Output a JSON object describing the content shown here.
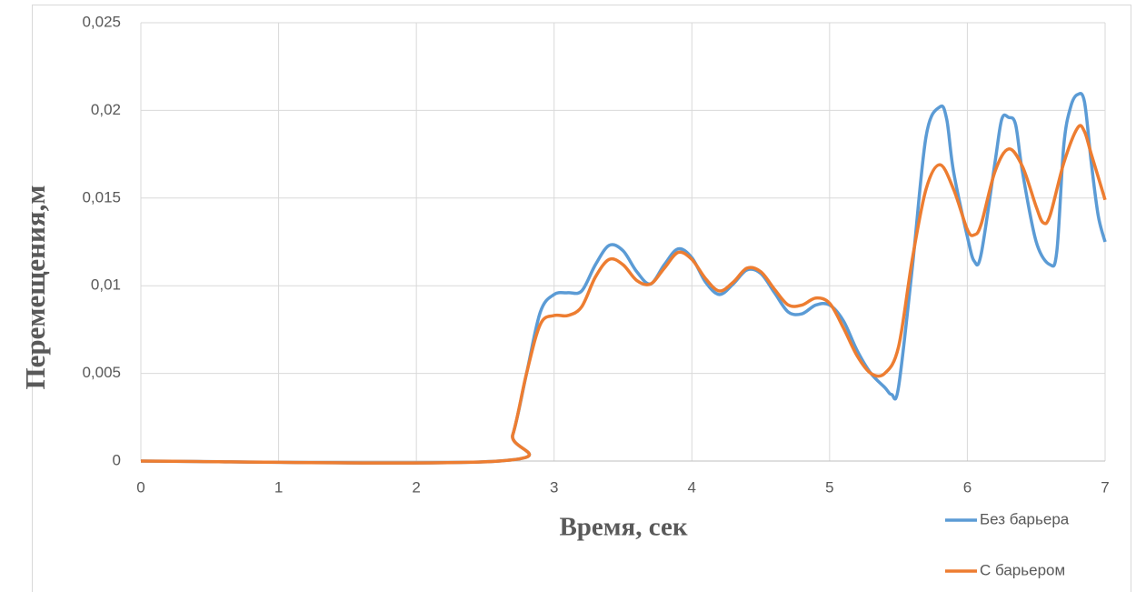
{
  "chart_data": {
    "type": "line",
    "x_label": "Время, сек",
    "y_label": "Перемещения,м",
    "xlim": [
      0,
      7
    ],
    "xticks": [
      0,
      1,
      2,
      3,
      4,
      5,
      6,
      7
    ],
    "ylim": [
      0,
      0.025
    ],
    "yticks": [
      0,
      {
        "value": 0.005,
        "label": "0,005"
      },
      {
        "value": 0.01,
        "label": "0,01"
      },
      {
        "value": 0.015,
        "label": "0,015"
      },
      {
        "value": 0.02,
        "label": "0,02"
      },
      {
        "value": 0.025,
        "label": "0,025"
      }
    ],
    "grid": true,
    "legend": "bottom-right",
    "series": [
      {
        "name": "Без барьера",
        "color": "#5b9bd5",
        "x": [
          0,
          2.6,
          2.7,
          2.8,
          2.9,
          3.0,
          3.1,
          3.2,
          3.3,
          3.4,
          3.5,
          3.6,
          3.7,
          3.8,
          3.9,
          4.0,
          4.1,
          4.2,
          4.3,
          4.4,
          4.5,
          4.6,
          4.7,
          4.8,
          4.9,
          5.0,
          5.1,
          5.2,
          5.3,
          5.4,
          5.45,
          5.5,
          5.6,
          5.7,
          5.8,
          5.85,
          5.9,
          6.0,
          6.05,
          6.1,
          6.2,
          6.25,
          6.3,
          6.35,
          6.4,
          6.5,
          6.6,
          6.65,
          6.7,
          6.75,
          6.8,
          6.85,
          6.9,
          6.95,
          7.0
        ],
        "values": [
          0,
          0,
          0.0015,
          0.005,
          0.0085,
          0.0095,
          0.0096,
          0.0097,
          0.0112,
          0.0123,
          0.012,
          0.0108,
          0.0101,
          0.0112,
          0.0121,
          0.0116,
          0.0102,
          0.0095,
          0.0101,
          0.0109,
          0.0107,
          0.0096,
          0.0085,
          0.0084,
          0.0089,
          0.0089,
          0.008,
          0.0063,
          0.005,
          0.0042,
          0.0038,
          0.0042,
          0.011,
          0.0185,
          0.0202,
          0.0195,
          0.0165,
          0.0128,
          0.0114,
          0.0118,
          0.017,
          0.0195,
          0.0196,
          0.0192,
          0.0165,
          0.0125,
          0.0112,
          0.012,
          0.018,
          0.0202,
          0.0209,
          0.0205,
          0.017,
          0.014,
          0.0125
        ]
      },
      {
        "name": "С барьером",
        "color": "#ed7d31",
        "x": [
          0,
          2.6,
          2.7,
          2.8,
          2.9,
          3.0,
          3.1,
          3.2,
          3.3,
          3.4,
          3.5,
          3.6,
          3.7,
          3.8,
          3.9,
          4.0,
          4.1,
          4.2,
          4.3,
          4.4,
          4.5,
          4.6,
          4.7,
          4.8,
          4.9,
          5.0,
          5.1,
          5.2,
          5.3,
          5.4,
          5.5,
          5.6,
          5.7,
          5.8,
          5.9,
          6.0,
          6.05,
          6.1,
          6.2,
          6.3,
          6.4,
          6.5,
          6.55,
          6.6,
          6.7,
          6.8,
          6.85,
          6.9,
          7.0
        ],
        "values": [
          0,
          0,
          0.0015,
          0.005,
          0.0078,
          0.0083,
          0.0083,
          0.0088,
          0.0105,
          0.0115,
          0.0112,
          0.0103,
          0.0101,
          0.011,
          0.0119,
          0.0115,
          0.0104,
          0.0097,
          0.0102,
          0.011,
          0.0108,
          0.0098,
          0.0089,
          0.0089,
          0.0093,
          0.009,
          0.0076,
          0.006,
          0.005,
          0.005,
          0.0065,
          0.0115,
          0.0155,
          0.0169,
          0.0155,
          0.0132,
          0.0129,
          0.0135,
          0.0165,
          0.0178,
          0.0168,
          0.0145,
          0.0136,
          0.014,
          0.017,
          0.019,
          0.0188,
          0.0175,
          0.0149
        ]
      }
    ]
  }
}
